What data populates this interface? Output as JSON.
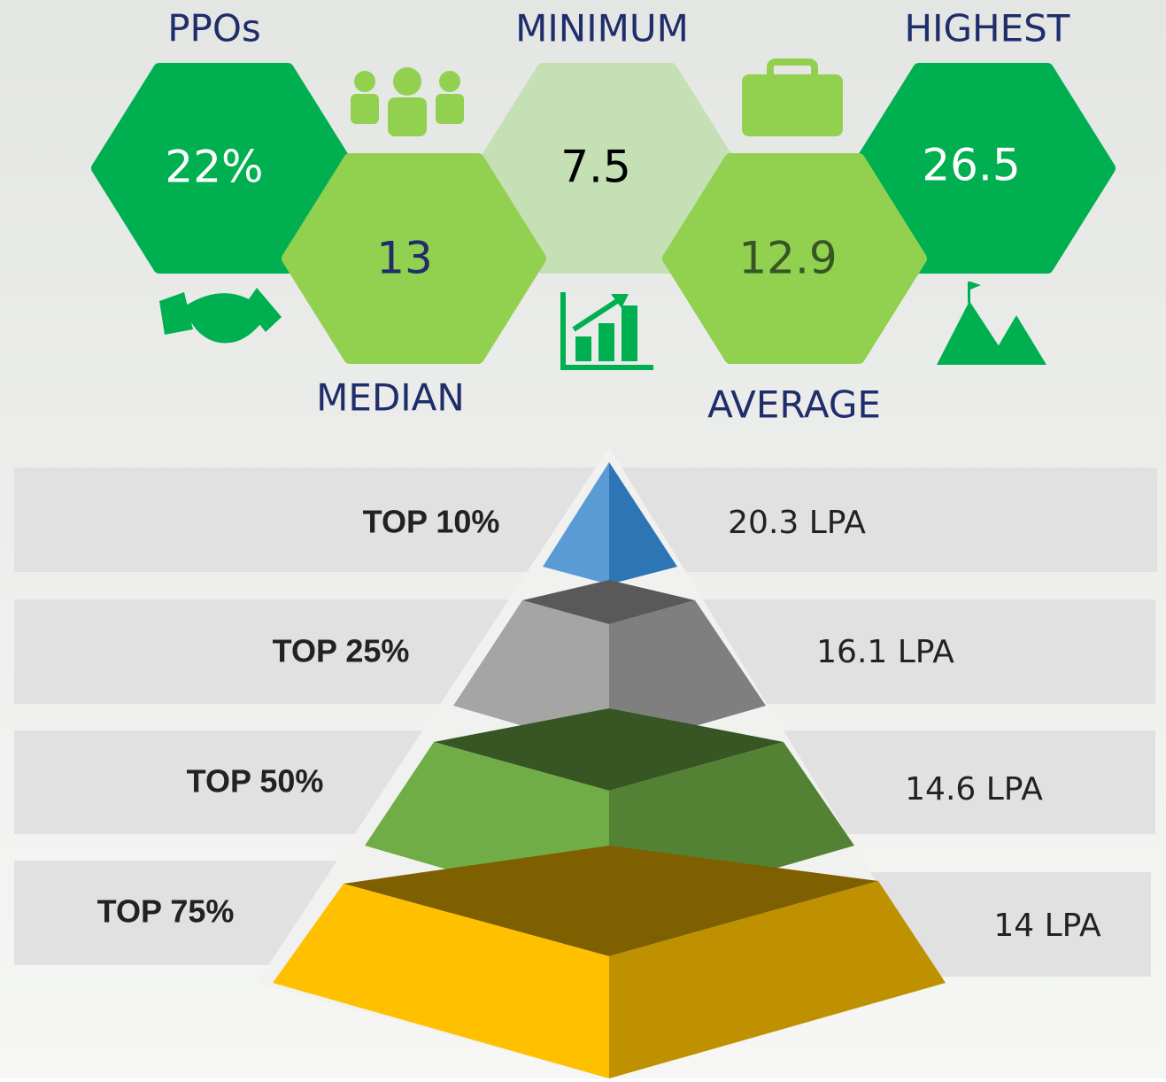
{
  "stats": [
    {
      "label": "PPOs",
      "value": "22%"
    },
    {
      "label": "MEDIAN",
      "value": "13"
    },
    {
      "label": "MINIMUM",
      "value": "7.5"
    },
    {
      "label": "AVERAGE",
      "value": "12.9"
    },
    {
      "label": "HIGHEST",
      "value": "26.5"
    }
  ],
  "pyramid": [
    {
      "label": "TOP 10%",
      "value": "20.3 LPA"
    },
    {
      "label": "TOP 25%",
      "value": "16.1 LPA"
    },
    {
      "label": "TOP 50%",
      "value": "14.6 LPA"
    },
    {
      "label": "TOP 75%",
      "value": "14 LPA"
    }
  ]
}
